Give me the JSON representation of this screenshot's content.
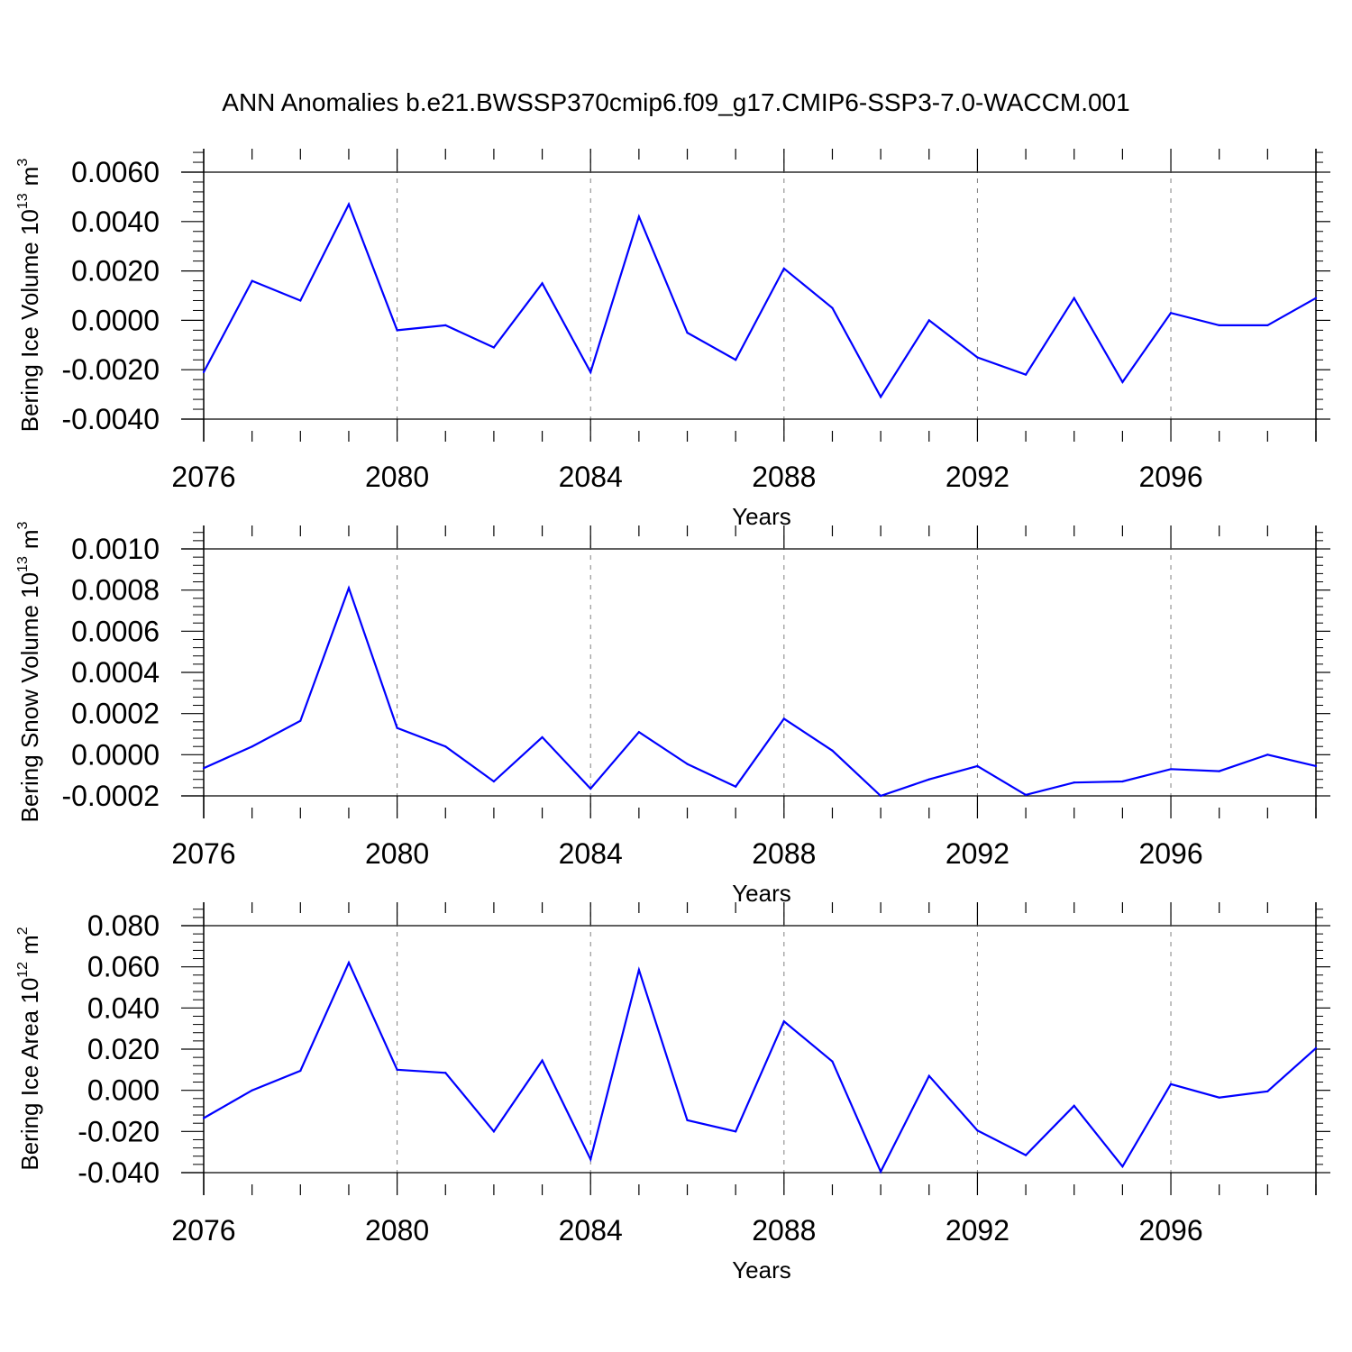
{
  "title": "ANN Anomalies b.e21.BWSSP370cmip6.f09_g17.CMIP6-SSP3-7.0-WACCM.001",
  "colors": {
    "line": "#0000ff",
    "axis": "#000000",
    "grid": "#808080"
  },
  "chart_data": [
    {
      "type": "line",
      "xlabel": "Years",
      "ylabel_main": "Bering Ice Volume 10",
      "ylabel_exp": "13",
      "ylabel_unit": "m",
      "ylabel_unit_exp": "3",
      "x": [
        2076,
        2077,
        2078,
        2079,
        2080,
        2081,
        2082,
        2083,
        2084,
        2085,
        2086,
        2087,
        2088,
        2089,
        2090,
        2091,
        2092,
        2093,
        2094,
        2095,
        2096,
        2097,
        2098,
        2099
      ],
      "values": [
        -0.0021,
        0.0016,
        0.0008,
        0.0047,
        -0.0004,
        -0.0002,
        -0.0011,
        0.0015,
        -0.0021,
        0.0042,
        -0.0005,
        -0.0016,
        0.0021,
        0.0005,
        -0.0031,
        0.0,
        -0.0015,
        -0.0022,
        0.0009,
        -0.0025,
        0.0003,
        -0.0002,
        -0.0002,
        0.0009
      ],
      "xlim": [
        2076,
        2099
      ],
      "ylim": [
        -0.004,
        0.0069
      ],
      "yticks": [
        -0.004,
        -0.002,
        0.0,
        0.002,
        0.004,
        0.006
      ],
      "ytick_labels": [
        "-0.0040",
        "-0.0020",
        "0.0000",
        "0.0020",
        "0.0040",
        "0.0060"
      ],
      "xticks": [
        2076,
        2080,
        2084,
        2088,
        2092,
        2096
      ],
      "xtick_labels": [
        "2076",
        "2080",
        "2084",
        "2088",
        "2092",
        "2096"
      ],
      "grid": "vertical dashed at major ticks"
    },
    {
      "type": "line",
      "xlabel": "Years",
      "ylabel_main": "Bering Snow Volume 10",
      "ylabel_exp": "13",
      "ylabel_unit": "m",
      "ylabel_unit_exp": "3",
      "x": [
        2076,
        2077,
        2078,
        2079,
        2080,
        2081,
        2082,
        2083,
        2084,
        2085,
        2086,
        2087,
        2088,
        2089,
        2090,
        2091,
        2092,
        2093,
        2094,
        2095,
        2096,
        2097,
        2098,
        2099
      ],
      "values": [
        -6.5e-05,
        4e-05,
        0.000165,
        0.00081,
        0.00013,
        4e-05,
        -0.00013,
        8.5e-05,
        -0.000165,
        0.00011,
        -4.5e-05,
        -0.000155,
        0.000175,
        2e-05,
        -0.0002,
        -0.00012,
        -5.5e-05,
        -0.000195,
        -0.000135,
        -0.00013,
        -7e-05,
        -8e-05,
        0.0,
        -5.5e-05
      ],
      "xlim": [
        2076,
        2099
      ],
      "ylim": [
        -0.0002,
        0.0011
      ],
      "yticks": [
        -0.0002,
        0.0,
        0.0002,
        0.0004,
        0.0006,
        0.0008,
        0.001
      ],
      "ytick_labels": [
        "-0.0002",
        "0.0000",
        "0.0002",
        "0.0004",
        "0.0006",
        "0.0008",
        "0.0010"
      ],
      "xticks": [
        2076,
        2080,
        2084,
        2088,
        2092,
        2096
      ],
      "xtick_labels": [
        "2076",
        "2080",
        "2084",
        "2088",
        "2092",
        "2096"
      ],
      "grid": "vertical dashed at major ticks"
    },
    {
      "type": "line",
      "xlabel": "Years",
      "ylabel_main": "Bering Ice Area 10",
      "ylabel_exp": "12",
      "ylabel_unit": "m",
      "ylabel_unit_exp": "2",
      "x": [
        2076,
        2077,
        2078,
        2079,
        2080,
        2081,
        2082,
        2083,
        2084,
        2085,
        2086,
        2087,
        2088,
        2089,
        2090,
        2091,
        2092,
        2093,
        2094,
        2095,
        2096,
        2097,
        2098,
        2099
      ],
      "values": [
        -0.0135,
        0.0,
        0.0095,
        0.062,
        0.01,
        0.0085,
        -0.02,
        0.0145,
        -0.0335,
        0.0585,
        -0.0145,
        -0.02,
        0.0335,
        0.014,
        -0.0395,
        0.007,
        -0.0195,
        -0.0315,
        -0.0075,
        -0.037,
        0.003,
        -0.0035,
        -0.0005,
        0.0205
      ],
      "xlim": [
        2076,
        2099
      ],
      "ylim": [
        -0.04,
        0.08
      ],
      "yticks": [
        -0.04,
        -0.02,
        0.0,
        0.02,
        0.04,
        0.06,
        0.08
      ],
      "ytick_labels": [
        "-0.040",
        "-0.020",
        "0.000",
        "0.020",
        "0.040",
        "0.060",
        "0.080"
      ],
      "xticks": [
        2076,
        2080,
        2084,
        2088,
        2092,
        2096
      ],
      "xtick_labels": [
        "2076",
        "2080",
        "2084",
        "2088",
        "2092",
        "2096"
      ],
      "grid": "vertical dashed at major ticks"
    }
  ]
}
